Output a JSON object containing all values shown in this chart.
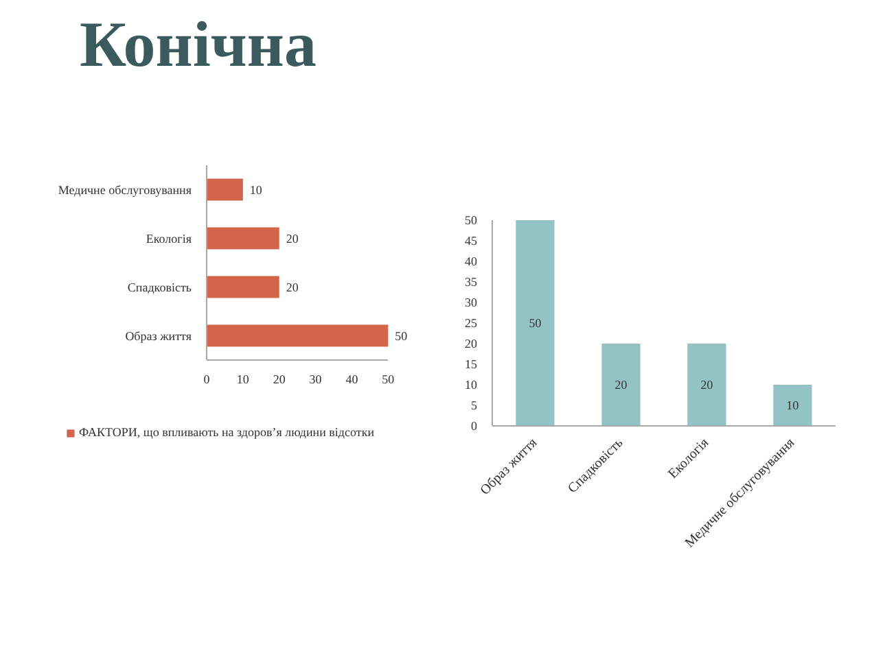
{
  "chart_data": [
    {
      "type": "bar",
      "title": "Конічна",
      "orientation": "horizontal",
      "categories": [
        "Медичне обслуговування",
        "Екологія",
        "Спадковість",
        "Образ життя"
      ],
      "series": [
        {
          "name": "ФАКТОРИ, що впливають на здоров’я людини відсотки",
          "color": "#d4654a",
          "values": [
            10,
            20,
            20,
            50
          ]
        }
      ],
      "xlim": [
        0,
        50
      ],
      "xticks": [
        0,
        10,
        20,
        30,
        40,
        50
      ],
      "data_labels": true,
      "legend": "bottom",
      "grid": false
    },
    {
      "type": "bar",
      "categories": [
        "Образ життя",
        "Спадковість",
        "Екологія",
        "Медичне обслуговування"
      ],
      "series": [
        {
          "color": "#93c3c5",
          "values": [
            50,
            20,
            20,
            10
          ]
        }
      ],
      "ylim": [
        0,
        50
      ],
      "yticks": [
        0,
        5,
        10,
        15,
        20,
        25,
        30,
        35,
        40,
        45,
        50
      ],
      "data_labels": true,
      "grid": false
    }
  ]
}
